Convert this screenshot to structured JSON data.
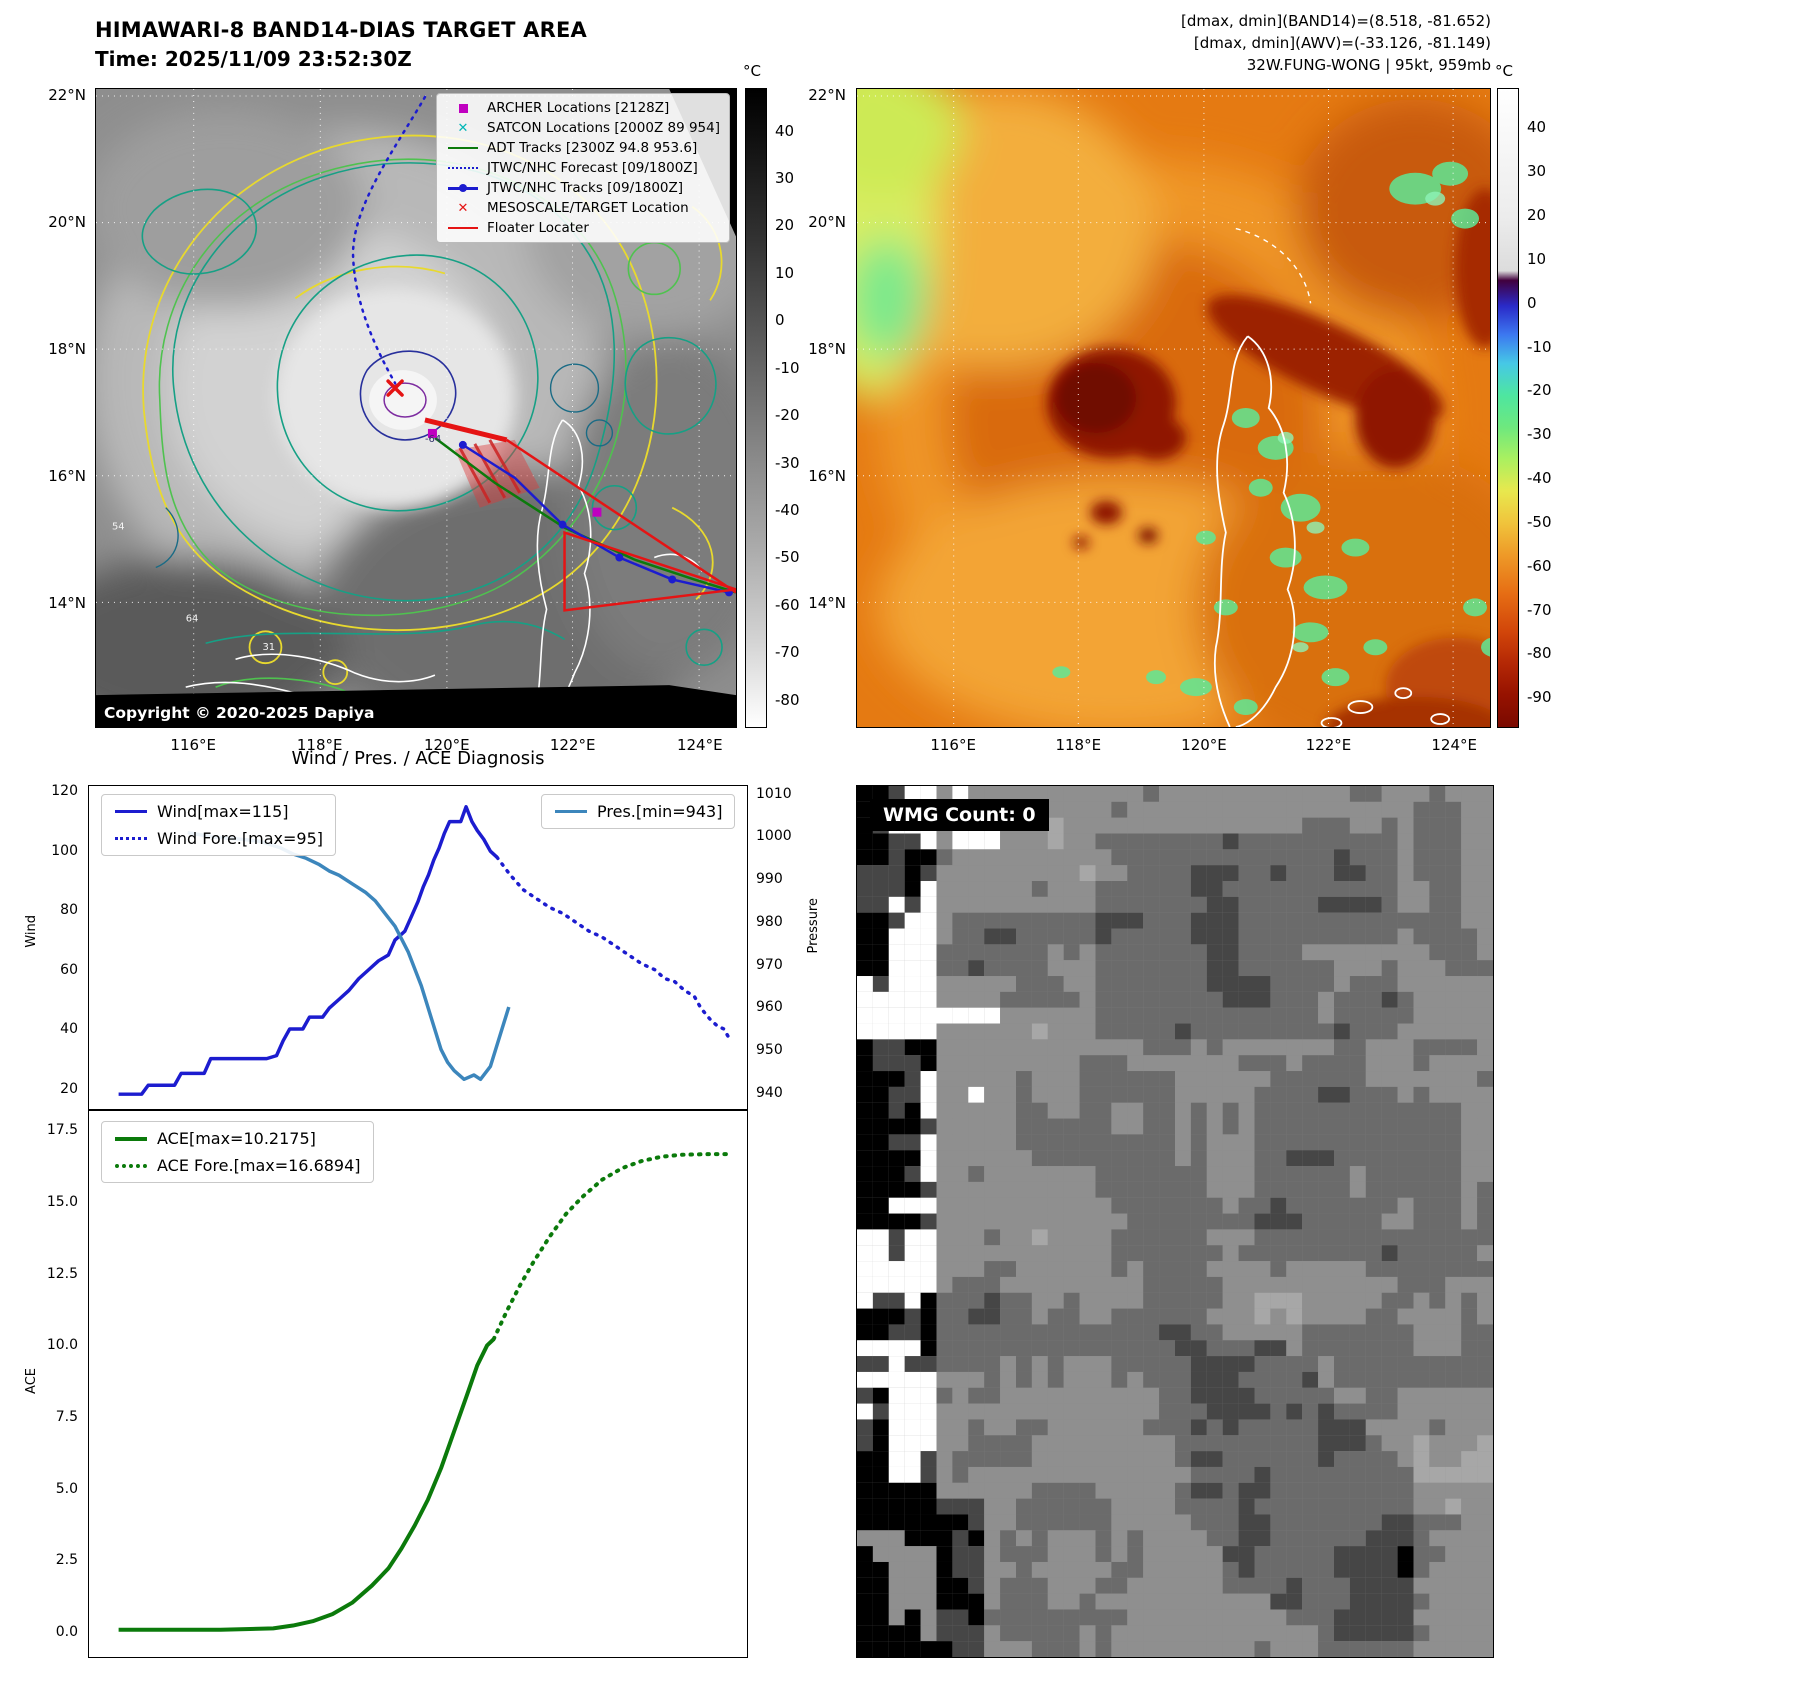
{
  "panel_band14": {
    "title": "HIMAWARI-8 BAND14-DIAS TARGET AREA",
    "time_label": "Time: 2025/11/09 23:52:30Z",
    "copyright": "Copyright © 2020-2025 Dapiya",
    "colorbar_unit": "°C",
    "colorbar_ticks": [
      40,
      30,
      20,
      10,
      0,
      -10,
      -20,
      -30,
      -40,
      -50,
      -60,
      -70,
      -80
    ],
    "lat_ticks": [
      "22°N",
      "20°N",
      "18°N",
      "16°N",
      "14°N"
    ],
    "lon_ticks": [
      "116°E",
      "118°E",
      "120°E",
      "122°E",
      "124°E"
    ],
    "contour_labels": [
      "-64",
      "64",
      "54",
      "31"
    ],
    "legend_items": [
      {
        "label": "ARCHER Locations [2128Z]",
        "marker": "magenta-square"
      },
      {
        "label": "SATCON Locations [2000Z 89 954]",
        "marker": "cyan-x"
      },
      {
        "label": "ADT Tracks [2300Z 94.8 953.6]",
        "marker": "green-line"
      },
      {
        "label": "JTWC/NHC Forecast [09/1800Z]",
        "marker": "blue-dotted"
      },
      {
        "label": "JTWC/NHC Tracks [09/1800Z]",
        "marker": "blue-line-dot"
      },
      {
        "label": "MESOSCALE/TARGET Location",
        "marker": "red-x"
      },
      {
        "label": "Floater Locater",
        "marker": "red-line"
      }
    ]
  },
  "panel_awv": {
    "header_lines": [
      "[dmax, dmin](BAND14)=(8.518, -81.652)",
      "[dmax, dmin](AWV)=(-33.126, -81.149)",
      "32W.FUNG-WONG | 95kt, 959mb"
    ],
    "colorbar_unit": "°C",
    "colorbar_ticks": [
      40,
      30,
      20,
      10,
      0,
      -10,
      -20,
      -30,
      -40,
      -50,
      -60,
      -70,
      -80,
      -90
    ],
    "lat_ticks": [
      "22°N",
      "20°N",
      "18°N",
      "16°N",
      "14°N"
    ],
    "lon_ticks": [
      "116°E",
      "118°E",
      "120°E",
      "122°E",
      "124°E"
    ]
  },
  "wmg": {
    "count_label": "WMG Count: 0"
  },
  "chart_data": [
    {
      "id": "wind-pres",
      "type": "line",
      "title": "Wind / Pres. / ACE Diagnosis",
      "xlim": [
        0,
        100
      ],
      "axes": {
        "wind": {
          "label": "Wind",
          "lim": [
            13,
            122
          ],
          "ticks": [
            20,
            40,
            60,
            80,
            100,
            120
          ]
        },
        "pressure": {
          "label": "Pressure",
          "lim": [
            936,
            1012
          ],
          "ticks": [
            940,
            950,
            960,
            970,
            980,
            990,
            1000,
            1010
          ]
        }
      },
      "series": [
        {
          "name": "Wind[max=115]",
          "axis": "wind",
          "color": "#1c1ccf",
          "dash": "solid",
          "width": 3.5,
          "points": [
            [
              4.5,
              18
            ],
            [
              8,
              18
            ],
            [
              9,
              21
            ],
            [
              13,
              21
            ],
            [
              14,
              25
            ],
            [
              17.5,
              25
            ],
            [
              18.5,
              30
            ],
            [
              27,
              30
            ],
            [
              28.5,
              31
            ],
            [
              29.5,
              36
            ],
            [
              30.5,
              40
            ],
            [
              32.5,
              40
            ],
            [
              33.5,
              44
            ],
            [
              35.5,
              44
            ],
            [
              36.5,
              47
            ],
            [
              38,
              50
            ],
            [
              39.5,
              53
            ],
            [
              41,
              57
            ],
            [
              42.5,
              60
            ],
            [
              44,
              63
            ],
            [
              45.5,
              65
            ],
            [
              46.5,
              70
            ],
            [
              48,
              73
            ],
            [
              49,
              78
            ],
            [
              50,
              83
            ],
            [
              50.8,
              88
            ],
            [
              51.6,
              92
            ],
            [
              52.4,
              97
            ],
            [
              53.2,
              101
            ],
            [
              54,
              106
            ],
            [
              54.8,
              110
            ],
            [
              56.5,
              110
            ],
            [
              57.3,
              115
            ],
            [
              58.2,
              110
            ],
            [
              59,
              107
            ],
            [
              60,
              104
            ],
            [
              61,
              100
            ],
            [
              62,
              98
            ]
          ]
        },
        {
          "name": "Wind Fore.[max=95]",
          "axis": "wind",
          "color": "#1c1ccf",
          "dash": "dotted",
          "width": 3.5,
          "points": [
            [
              62,
              98
            ],
            [
              64,
              92
            ],
            [
              66,
              87
            ],
            [
              68,
              84
            ],
            [
              70,
              81
            ],
            [
              72,
              79
            ],
            [
              74,
              76
            ],
            [
              76,
              73
            ],
            [
              78,
              71
            ],
            [
              80,
              68
            ],
            [
              82,
              65
            ],
            [
              84,
              62
            ],
            [
              86,
              60
            ],
            [
              87.5,
              57
            ],
            [
              89,
              56
            ],
            [
              90.5,
              53
            ],
            [
              92,
              51
            ],
            [
              93,
              47
            ],
            [
              94.5,
              43
            ],
            [
              95.5,
              41
            ],
            [
              96.5,
              40
            ],
            [
              97.5,
              36
            ]
          ]
        },
        {
          "name": "Pres.[min=943]",
          "axis": "pressure",
          "color": "#3c86bc",
          "dash": "solid",
          "width": 3.5,
          "points": [
            [
              15,
              1001
            ],
            [
              19,
              1000
            ],
            [
              23,
              999.5
            ],
            [
              26,
              999
            ],
            [
              29,
              997.5
            ],
            [
              31,
              996
            ],
            [
              33,
              995
            ],
            [
              35,
              993.5
            ],
            [
              36.5,
              992
            ],
            [
              38,
              991
            ],
            [
              40,
              989
            ],
            [
              42,
              987
            ],
            [
              43.5,
              985
            ],
            [
              45,
              982
            ],
            [
              46.5,
              979
            ],
            [
              47.5,
              976
            ],
            [
              48.5,
              973
            ],
            [
              49.5,
              969
            ],
            [
              50.5,
              965
            ],
            [
              51.5,
              960
            ],
            [
              52.5,
              955
            ],
            [
              53.5,
              950
            ],
            [
              54.5,
              947
            ],
            [
              55.5,
              945
            ],
            [
              57,
              943
            ],
            [
              58.5,
              944
            ],
            [
              59.5,
              943
            ],
            [
              61,
              946
            ],
            [
              62,
              951
            ],
            [
              63,
              956
            ],
            [
              63.8,
              960
            ]
          ]
        }
      ]
    },
    {
      "id": "ace",
      "type": "line",
      "xlim": [
        0,
        100
      ],
      "axes": {
        "ace": {
          "label": "ACE",
          "lim": [
            -0.9,
            18.2
          ],
          "ticks": [
            0,
            2.5,
            5,
            7.5,
            10,
            12.5,
            15,
            17.5
          ]
        }
      },
      "series": [
        {
          "name": "ACE[max=10.2175]",
          "axis": "ace",
          "color": "#0b7a0b",
          "dash": "solid",
          "width": 4,
          "points": [
            [
              4.5,
              0.05
            ],
            [
              20,
              0.05
            ],
            [
              28,
              0.1
            ],
            [
              31,
              0.2
            ],
            [
              34,
              0.35
            ],
            [
              37,
              0.6
            ],
            [
              40,
              1.0
            ],
            [
              43,
              1.6
            ],
            [
              45.5,
              2.2
            ],
            [
              47.5,
              2.9
            ],
            [
              49.5,
              3.7
            ],
            [
              51.5,
              4.6
            ],
            [
              53.5,
              5.7
            ],
            [
              55.5,
              7.0
            ],
            [
              57.5,
              8.3
            ],
            [
              59,
              9.3
            ],
            [
              60.5,
              10.0
            ],
            [
              61.5,
              10.22
            ]
          ]
        },
        {
          "name": "ACE Fore.[max=16.6894]",
          "axis": "ace",
          "color": "#0b7a0b",
          "dash": "dotted",
          "width": 4,
          "points": [
            [
              61.5,
              10.22
            ],
            [
              63.5,
              11.2
            ],
            [
              65.5,
              12.1
            ],
            [
              67.5,
              12.9
            ],
            [
              70,
              13.8
            ],
            [
              72.5,
              14.6
            ],
            [
              75,
              15.2
            ],
            [
              78,
              15.8
            ],
            [
              81,
              16.2
            ],
            [
              84,
              16.45
            ],
            [
              87,
              16.6
            ],
            [
              90,
              16.67
            ],
            [
              94,
              16.69
            ],
            [
              97.5,
              16.69
            ]
          ]
        }
      ]
    }
  ]
}
